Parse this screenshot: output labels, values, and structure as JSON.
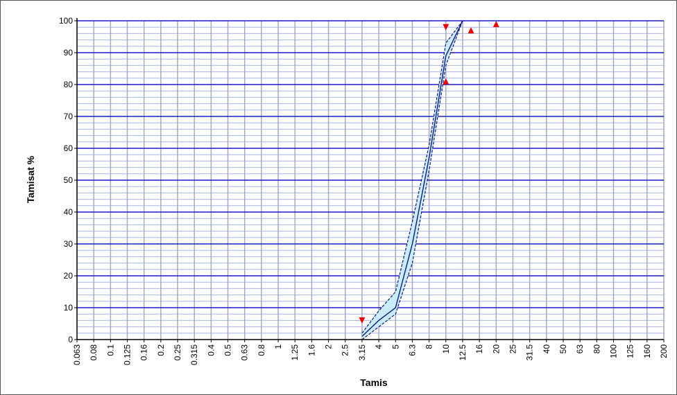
{
  "chart_data": {
    "type": "line",
    "xlabel": "Tamis",
    "ylabel": "Tamisat %",
    "ylim": [
      0,
      100
    ],
    "x_scale": "categorical",
    "categories": [
      "0.063",
      "0.08",
      "0.1",
      "0.125",
      "0.16",
      "0.2",
      "0.25",
      "0.315",
      "0.4",
      "0.5",
      "0.63",
      "0.8",
      "1",
      "1.25",
      "1.6",
      "2",
      "2.5",
      "3.15",
      "4",
      "5",
      "6.3",
      "8",
      "10",
      "12.5",
      "16",
      "20",
      "25",
      "31.5",
      "40",
      "50",
      "63",
      "80",
      "100",
      "125",
      "160",
      "200"
    ],
    "y_ticks": [
      0,
      10,
      20,
      30,
      40,
      50,
      60,
      70,
      80,
      90,
      100
    ],
    "grid": true,
    "legend": "none",
    "colors": {
      "major_grid": "#1a1acc",
      "minor_grid": "#aab4ee",
      "vertical_grid": "#a8a8c4",
      "curve": "#10187a",
      "band_fill": "#c8ecfa",
      "marker": "#ee0000"
    },
    "series": [
      {
        "role": "center",
        "style": "solid",
        "x": [
          "3.15",
          "4",
          "5",
          "6.3",
          "8",
          "10",
          "12.5"
        ],
        "y": [
          1,
          6,
          10,
          30,
          57,
          89,
          100
        ]
      },
      {
        "role": "upper",
        "style": "dashed",
        "x": [
          "3.15",
          "4",
          "5",
          "6.3",
          "8",
          "10",
          "12.5"
        ],
        "y": [
          2,
          9,
          15,
          37,
          61,
          93,
          100
        ]
      },
      {
        "role": "lower",
        "style": "dashed",
        "x": [
          "3.15",
          "4",
          "5",
          "6.3",
          "8",
          "10",
          "12.5"
        ],
        "y": [
          0,
          4,
          8,
          24,
          53,
          86,
          100
        ]
      }
    ],
    "markers": [
      {
        "x": "3.15",
        "y": 6,
        "shape": "triangle-down"
      },
      {
        "x": "10",
        "y": 98,
        "shape": "triangle-down"
      },
      {
        "x": "10",
        "y": 81,
        "shape": "triangle-up"
      },
      {
        "x": "12.5",
        "y": 97,
        "shape": "triangle-up",
        "offset": 0.5
      },
      {
        "x": "20",
        "y": 99,
        "shape": "triangle-up"
      }
    ]
  }
}
